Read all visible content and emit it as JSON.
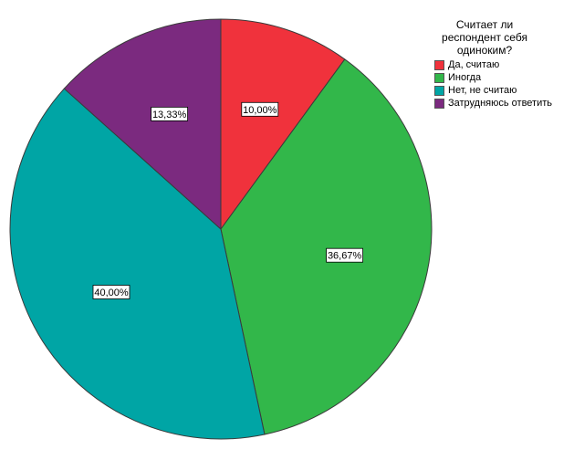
{
  "chart_data": {
    "type": "pie",
    "legend_title": [
      "Считает ли",
      "респондент себя",
      "одиноким?"
    ],
    "legend_position": "top-right",
    "start_angle_deg": 0,
    "direction": "clockwise",
    "slices": [
      {
        "label": "Да, считаю",
        "value": 10.0,
        "data_label": "10,00%",
        "color": "#f0323c"
      },
      {
        "label": "Иногда",
        "value": 36.67,
        "data_label": "36,67%",
        "color": "#32b74a"
      },
      {
        "label": "Нет, не считаю",
        "value": 40.0,
        "data_label": "40,00%",
        "color": "#00a5a5"
      },
      {
        "label": "Затрудняюсь ответить",
        "value": 13.33,
        "data_label": "13,33%",
        "color": "#7b2a7f"
      }
    ]
  }
}
